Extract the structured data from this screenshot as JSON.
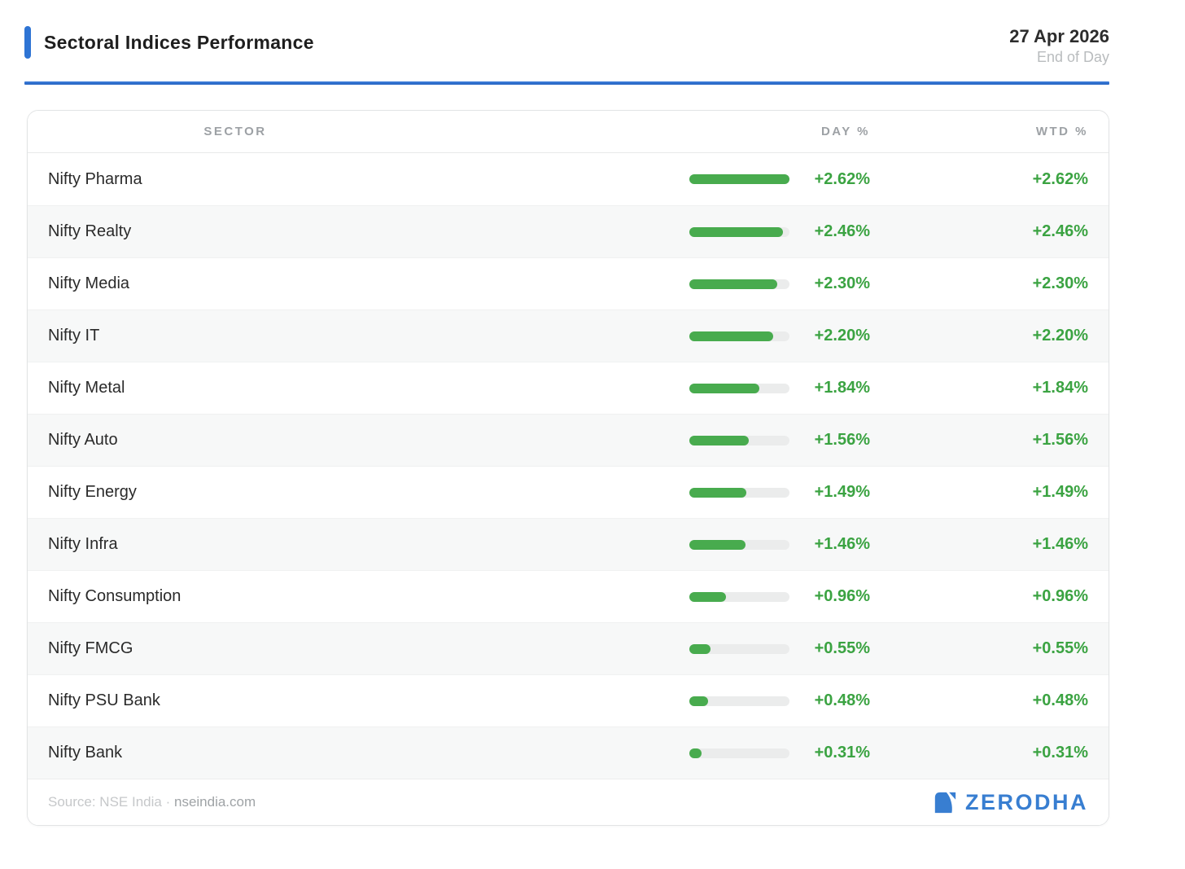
{
  "header": {
    "title": "Sectoral Indices Performance",
    "date": "27 Apr 2026",
    "period": "End of Day"
  },
  "table": {
    "columns": [
      "SECTOR",
      "DAY %",
      "WTD %"
    ],
    "max_value": 2.62,
    "rows": [
      {
        "sector": "Nifty Pharma",
        "value": 2.62,
        "day": "+2.62%",
        "wtd": "+2.62%"
      },
      {
        "sector": "Nifty Realty",
        "value": 2.46,
        "day": "+2.46%",
        "wtd": "+2.46%"
      },
      {
        "sector": "Nifty Media",
        "value": 2.3,
        "day": "+2.30%",
        "wtd": "+2.30%"
      },
      {
        "sector": "Nifty IT",
        "value": 2.2,
        "day": "+2.20%",
        "wtd": "+2.20%"
      },
      {
        "sector": "Nifty Metal",
        "value": 1.84,
        "day": "+1.84%",
        "wtd": "+1.84%"
      },
      {
        "sector": "Nifty Auto",
        "value": 1.56,
        "day": "+1.56%",
        "wtd": "+1.56%"
      },
      {
        "sector": "Nifty Energy",
        "value": 1.49,
        "day": "+1.49%",
        "wtd": "+1.49%"
      },
      {
        "sector": "Nifty Infra",
        "value": 1.46,
        "day": "+1.46%",
        "wtd": "+1.46%"
      },
      {
        "sector": "Nifty Consumption",
        "value": 0.96,
        "day": "+0.96%",
        "wtd": "+0.96%"
      },
      {
        "sector": "Nifty FMCG",
        "value": 0.55,
        "day": "+0.55%",
        "wtd": "+0.55%"
      },
      {
        "sector": "Nifty PSU Bank",
        "value": 0.48,
        "day": "+0.48%",
        "wtd": "+0.48%"
      },
      {
        "sector": "Nifty Bank",
        "value": 0.31,
        "day": "+0.31%",
        "wtd": "+0.31%"
      }
    ]
  },
  "footer": {
    "source_prefix": "Source: NSE India ·",
    "source_link": "nseindia.com",
    "brand": "ZERODHA"
  },
  "colors": {
    "accent_blue": "#2E74D4",
    "brand_blue": "#387ED1",
    "positive_text": "#3BA342",
    "bar_fill": "#48AB4E",
    "bar_track": "#EBECEC"
  },
  "chart_data": {
    "type": "bar",
    "title": "Sectoral Indices Performance",
    "subtitle": "27 Apr 2026 · End of Day",
    "categories": [
      "Nifty Pharma",
      "Nifty Realty",
      "Nifty Media",
      "Nifty IT",
      "Nifty Metal",
      "Nifty Auto",
      "Nifty Energy",
      "Nifty Infra",
      "Nifty Consumption",
      "Nifty FMCG",
      "Nifty PSU Bank",
      "Nifty Bank"
    ],
    "series": [
      {
        "name": "DAY %",
        "values": [
          2.62,
          2.46,
          2.3,
          2.2,
          1.84,
          1.56,
          1.49,
          1.46,
          0.96,
          0.55,
          0.48,
          0.31
        ]
      },
      {
        "name": "WTD %",
        "values": [
          2.62,
          2.46,
          2.3,
          2.2,
          1.84,
          1.56,
          1.49,
          1.46,
          0.96,
          0.55,
          0.48,
          0.31
        ]
      }
    ],
    "xlim": [
      0,
      2.62
    ],
    "value_format": "+x.xx%",
    "bar_color": "#48AB4E",
    "orientation": "horizontal",
    "grid": false,
    "legend_position": "column-headers",
    "source": "NSE India · nseindia.com"
  }
}
